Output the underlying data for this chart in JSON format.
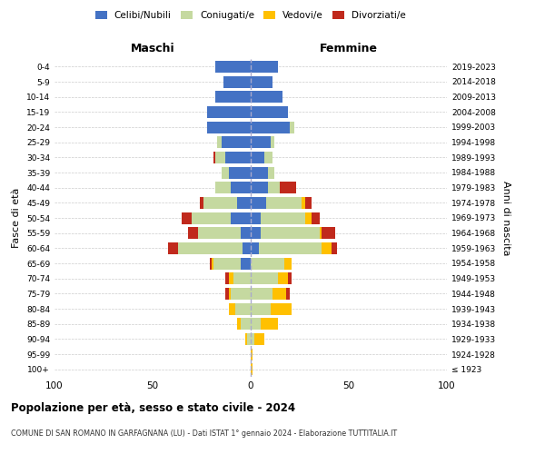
{
  "age_groups": [
    "100+",
    "95-99",
    "90-94",
    "85-89",
    "80-84",
    "75-79",
    "70-74",
    "65-69",
    "60-64",
    "55-59",
    "50-54",
    "45-49",
    "40-44",
    "35-39",
    "30-34",
    "25-29",
    "20-24",
    "15-19",
    "10-14",
    "5-9",
    "0-4"
  ],
  "birth_years": [
    "≤ 1923",
    "1924-1928",
    "1929-1933",
    "1934-1938",
    "1939-1943",
    "1944-1948",
    "1949-1953",
    "1954-1958",
    "1959-1963",
    "1964-1968",
    "1969-1973",
    "1974-1978",
    "1979-1983",
    "1984-1988",
    "1989-1993",
    "1994-1998",
    "1999-2003",
    "2004-2008",
    "2009-2013",
    "2014-2018",
    "2019-2023"
  ],
  "maschi_celibi": [
    0,
    0,
    0,
    0,
    0,
    0,
    0,
    5,
    4,
    5,
    10,
    7,
    10,
    11,
    13,
    15,
    22,
    22,
    18,
    14,
    18
  ],
  "maschi_coniugati": [
    0,
    0,
    2,
    5,
    8,
    10,
    9,
    14,
    33,
    22,
    20,
    17,
    8,
    4,
    5,
    2,
    0,
    0,
    0,
    0,
    0
  ],
  "maschi_vedovi": [
    0,
    0,
    1,
    2,
    3,
    1,
    2,
    1,
    0,
    0,
    0,
    0,
    0,
    0,
    0,
    0,
    0,
    0,
    0,
    0,
    0
  ],
  "maschi_divorziati": [
    0,
    0,
    0,
    0,
    0,
    2,
    2,
    1,
    5,
    5,
    5,
    2,
    0,
    0,
    1,
    0,
    0,
    0,
    0,
    0,
    0
  ],
  "femmine_celibi": [
    0,
    0,
    0,
    0,
    0,
    0,
    0,
    0,
    4,
    5,
    5,
    8,
    9,
    9,
    7,
    10,
    20,
    19,
    16,
    11,
    14
  ],
  "femmine_coniugati": [
    0,
    0,
    2,
    5,
    10,
    11,
    14,
    17,
    32,
    30,
    23,
    18,
    6,
    3,
    4,
    2,
    2,
    0,
    0,
    0,
    0
  ],
  "femmine_vedovi": [
    1,
    1,
    5,
    9,
    11,
    7,
    5,
    4,
    5,
    1,
    3,
    2,
    0,
    0,
    0,
    0,
    0,
    0,
    0,
    0,
    0
  ],
  "femmine_divorziati": [
    0,
    0,
    0,
    0,
    0,
    2,
    2,
    0,
    3,
    7,
    4,
    3,
    8,
    0,
    0,
    0,
    0,
    0,
    0,
    0,
    0
  ],
  "color_celibi": "#4472c4",
  "color_coniugati": "#c5d9a0",
  "color_vedovi": "#ffc000",
  "color_divorziati": "#c0291c",
  "xlim": 100,
  "title": "Popolazione per età, sesso e stato civile - 2024",
  "subtitle": "COMUNE DI SAN ROMANO IN GARFAGNANA (LU) - Dati ISTAT 1° gennaio 2024 - Elaborazione TUTTITALIA.IT",
  "ylabel_left": "Fasce di età",
  "ylabel_right": "Anni di nascita",
  "xlabel_left": "Maschi",
  "xlabel_right": "Femmine",
  "legend_labels": [
    "Celibi/Nubili",
    "Coniugati/e",
    "Vedovi/e",
    "Divorziati/e"
  ],
  "bg_color": "#ffffff",
  "grid_color": "#cccccc"
}
